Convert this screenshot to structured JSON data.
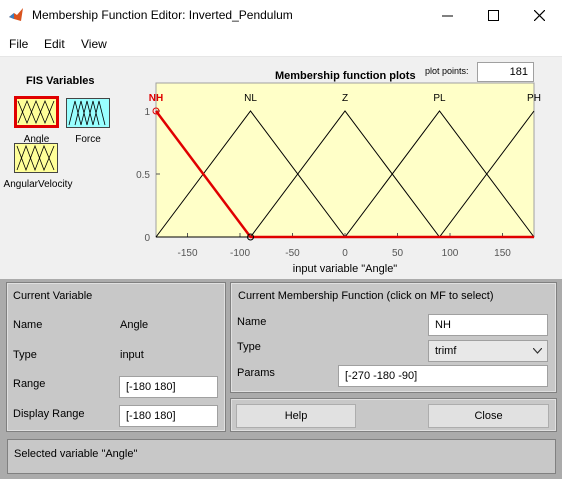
{
  "window": {
    "title": "Membership Function Editor: Inverted_Pendulum",
    "minimize_icon": "minimize-icon",
    "maximize_icon": "maximize-icon",
    "close_icon": "close-icon"
  },
  "menu": {
    "file": "File",
    "edit": "Edit",
    "view": "View"
  },
  "fis": {
    "title": "FIS Variables",
    "variables": [
      {
        "label": "Angle",
        "kind": "input",
        "selected": true
      },
      {
        "label": "Force",
        "kind": "output",
        "selected": false
      },
      {
        "label": "AngularVelocity",
        "kind": "input",
        "selected": false
      }
    ],
    "input_color": "#ffff99",
    "output_color": "#99ffff",
    "selected_color": "#e00000"
  },
  "plot": {
    "title": "Membership function plots",
    "plot_points_label": "plot points:",
    "plot_points_value": "181"
  },
  "chart_data": {
    "type": "line",
    "xlabel": "input variable \"Angle\"",
    "xlim": [
      -180,
      180
    ],
    "ylim": [
      0,
      1
    ],
    "xticks": [
      -150,
      -100,
      -50,
      0,
      50,
      100,
      150
    ],
    "yticks": [
      "0",
      "0.5",
      "1"
    ],
    "background": "#ffffc8",
    "series": [
      {
        "name": "NH",
        "params": [
          -270,
          -180,
          -90
        ],
        "selected": true
      },
      {
        "name": "NL",
        "params": [
          -180,
          -90,
          0
        ],
        "selected": false
      },
      {
        "name": "Z",
        "params": [
          -90,
          0,
          90
        ],
        "selected": false
      },
      {
        "name": "PL",
        "params": [
          0,
          90,
          180
        ],
        "selected": false
      },
      {
        "name": "PH",
        "params": [
          90,
          180,
          270
        ],
        "selected": false
      }
    ]
  },
  "current_variable": {
    "title": "Current Variable",
    "name_label": "Name",
    "name_value": "Angle",
    "type_label": "Type",
    "type_value": "input",
    "range_label": "Range",
    "range_value": "[-180 180]",
    "display_range_label": "Display Range",
    "display_range_value": "[-180 180]"
  },
  "current_mf": {
    "title": "Current Membership Function (click on MF to select)",
    "name_label": "Name",
    "name_value": "NH",
    "type_label": "Type",
    "type_value": "trimf",
    "params_label": "Params",
    "params_value": "[-270 -180 -90]"
  },
  "buttons": {
    "help": "Help",
    "close": "Close"
  },
  "status": "Selected variable \"Angle\""
}
